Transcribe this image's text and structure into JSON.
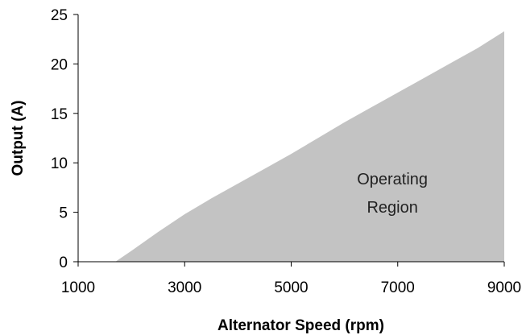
{
  "chart_data": {
    "type": "area",
    "title": "",
    "xlabel": "Alternator Speed (rpm)",
    "ylabel": "Output (A)",
    "xlim": [
      1000,
      9000
    ],
    "ylim": [
      0,
      25
    ],
    "x_ticks": [
      1000,
      3000,
      5000,
      7000,
      9000
    ],
    "y_ticks": [
      0,
      5,
      10,
      15,
      20,
      25
    ],
    "grid": false,
    "legend": "none",
    "colors": {
      "area": "#c3c3c3",
      "axis": "#000000"
    },
    "series": [
      {
        "x": [
          1700,
          2000,
          2500,
          3000,
          3500,
          4000,
          4500,
          5000,
          5500,
          6000,
          6500,
          7000,
          7500,
          8000,
          8500,
          9000
        ],
        "y": [
          0,
          1.1,
          3.0,
          4.8,
          6.4,
          7.9,
          9.4,
          10.9,
          12.5,
          14.1,
          15.6,
          17.1,
          18.6,
          20.1,
          21.6,
          23.3
        ]
      }
    ],
    "annotations": [
      {
        "line1": "Operating",
        "line2": "Region",
        "x": 6900,
        "y": 7.8
      }
    ]
  }
}
